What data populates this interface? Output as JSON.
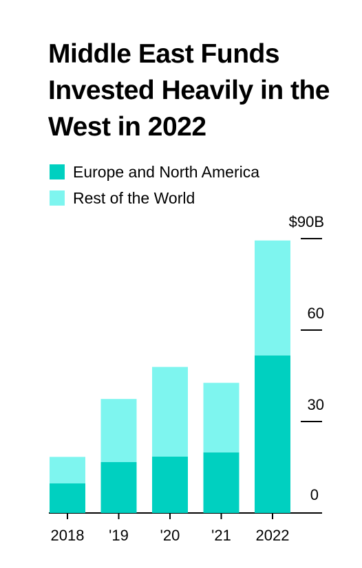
{
  "chart_data": {
    "type": "bar",
    "stacked": true,
    "title": "Middle East Funds Invested Heavily in the West in 2022",
    "categories": [
      "2018",
      "'19",
      "'20",
      "'21",
      "2022"
    ],
    "series": [
      {
        "name": "Europe and North America",
        "color": "#00d0c0",
        "values": [
          9.7,
          16.7,
          18.5,
          19.9,
          51.7
        ]
      },
      {
        "name": "Rest of the World",
        "color": "#7ef5ef",
        "values": [
          8.7,
          20.7,
          29.4,
          22.8,
          37.7
        ]
      }
    ],
    "ylim": [
      0,
      90
    ],
    "yticks": [
      0,
      30,
      60,
      90
    ],
    "ytick_labels": [
      "0",
      "30",
      "60",
      "$90B"
    ],
    "xlabel": "",
    "ylabel": "",
    "legend": "top-left",
    "grid": false
  }
}
